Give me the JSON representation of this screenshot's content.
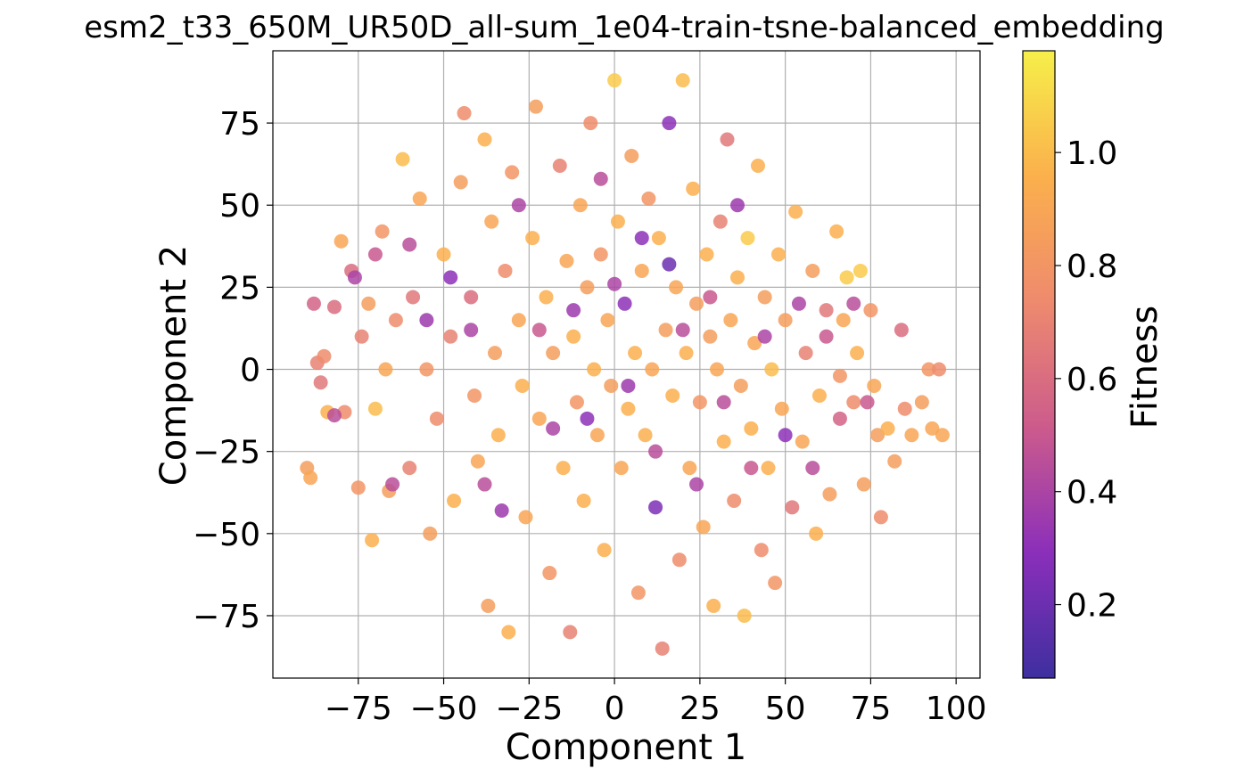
{
  "chart_data": {
    "type": "scatter",
    "title": "esm2_t33_650M_UR50D_all-sum_1e04-train-tsne-balanced_embedding",
    "xlabel": "Component 1",
    "ylabel": "Component 2",
    "xlim": [
      -100,
      107
    ],
    "ylim": [
      -94,
      97
    ],
    "xticks": [
      -75,
      -50,
      -25,
      0,
      25,
      50,
      75,
      100
    ],
    "yticks": [
      -75,
      -50,
      -25,
      0,
      25,
      50,
      75
    ],
    "xtick_labels": [
      "−75",
      "−50",
      "−25",
      "0",
      "25",
      "50",
      "75",
      "100"
    ],
    "ytick_labels": [
      "−75",
      "−50",
      "−25",
      "0",
      "25",
      "50",
      "75"
    ],
    "grid": true,
    "colormap": "plasma",
    "colorbar": {
      "label": "Fitness",
      "range": [
        0.07,
        1.18
      ],
      "ticks": [
        0.2,
        0.4,
        0.6,
        0.8,
        1.0
      ],
      "tick_labels": [
        "0.2",
        "0.4",
        "0.6",
        "0.8",
        "1.0"
      ],
      "colors": [
        "#3e2f9f",
        "#8b2fba",
        "#cc5b8c",
        "#ee8a6e",
        "#fbb04c",
        "#f6ef4a"
      ]
    },
    "points": [
      [
        -90,
        -30,
        0.85
      ],
      [
        -89,
        -33,
        0.9
      ],
      [
        -87,
        2,
        0.7
      ],
      [
        -86,
        -4,
        0.65
      ],
      [
        -85,
        4,
        0.75
      ],
      [
        -84,
        -13,
        0.95
      ],
      [
        -82,
        19,
        0.6
      ],
      [
        -80,
        39,
        0.9
      ],
      [
        -79,
        -13,
        0.75
      ],
      [
        -77,
        30,
        0.6
      ],
      [
        -75,
        -36,
        0.8
      ],
      [
        -74,
        10,
        0.7
      ],
      [
        -72,
        20,
        0.85
      ],
      [
        -71,
        -52,
        0.95
      ],
      [
        -70,
        -12,
        1.0
      ],
      [
        -68,
        42,
        0.8
      ],
      [
        -67,
        0,
        0.9
      ],
      [
        -66,
        -37,
        0.85
      ],
      [
        -64,
        15,
        0.75
      ],
      [
        -62,
        64,
        1.0
      ],
      [
        -60,
        -30,
        0.7
      ],
      [
        -59,
        22,
        0.65
      ],
      [
        -57,
        52,
        0.9
      ],
      [
        -55,
        0,
        0.8
      ],
      [
        -54,
        -50,
        0.85
      ],
      [
        -52,
        -15,
        0.75
      ],
      [
        -50,
        35,
        0.95
      ],
      [
        -48,
        10,
        0.7
      ],
      [
        -47,
        -40,
        0.95
      ],
      [
        -45,
        57,
        0.85
      ],
      [
        -44,
        78,
        0.75
      ],
      [
        -42,
        22,
        0.6
      ],
      [
        -41,
        -8,
        0.8
      ],
      [
        -40,
        -28,
        0.9
      ],
      [
        -38,
        70,
        0.95
      ],
      [
        -37,
        -72,
        0.85
      ],
      [
        -36,
        45,
        0.9
      ],
      [
        -35,
        5,
        0.85
      ],
      [
        -34,
        -20,
        0.95
      ],
      [
        -32,
        30,
        0.75
      ],
      [
        -31,
        -80,
        0.95
      ],
      [
        -30,
        60,
        0.8
      ],
      [
        -28,
        15,
        0.9
      ],
      [
        -27,
        -5,
        0.95
      ],
      [
        -26,
        -45,
        0.9
      ],
      [
        -24,
        40,
        0.95
      ],
      [
        -23,
        80,
        0.85
      ],
      [
        -22,
        -15,
        0.9
      ],
      [
        -20,
        22,
        0.95
      ],
      [
        -19,
        -62,
        0.8
      ],
      [
        -18,
        5,
        0.85
      ],
      [
        -16,
        62,
        0.7
      ],
      [
        -15,
        -30,
        0.95
      ],
      [
        -14,
        33,
        0.9
      ],
      [
        -13,
        -80,
        0.7
      ],
      [
        -12,
        10,
        0.95
      ],
      [
        -11,
        -10,
        0.8
      ],
      [
        -10,
        50,
        0.9
      ],
      [
        -9,
        -40,
        0.95
      ],
      [
        -8,
        25,
        0.85
      ],
      [
        -7,
        75,
        0.75
      ],
      [
        -6,
        0,
        0.95
      ],
      [
        -5,
        -20,
        0.9
      ],
      [
        -4,
        35,
        0.8
      ],
      [
        -3,
        -55,
        0.95
      ],
      [
        -2,
        15,
        0.9
      ],
      [
        -1,
        -5,
        0.85
      ],
      [
        0,
        88,
        1.05
      ],
      [
        1,
        45,
        0.95
      ],
      [
        2,
        -30,
        0.9
      ],
      [
        3,
        20,
        0.3
      ],
      [
        4,
        -12,
        0.95
      ],
      [
        5,
        65,
        0.85
      ],
      [
        6,
        5,
        0.95
      ],
      [
        7,
        -68,
        0.8
      ],
      [
        8,
        30,
        0.9
      ],
      [
        9,
        -20,
        0.95
      ],
      [
        10,
        52,
        0.8
      ],
      [
        11,
        0,
        0.9
      ],
      [
        12,
        -42,
        0.25
      ],
      [
        13,
        40,
        0.95
      ],
      [
        14,
        -85,
        0.7
      ],
      [
        15,
        12,
        0.85
      ],
      [
        16,
        75,
        0.3
      ],
      [
        17,
        -8,
        0.95
      ],
      [
        18,
        25,
        0.9
      ],
      [
        19,
        -58,
        0.75
      ],
      [
        20,
        88,
        1.0
      ],
      [
        21,
        5,
        0.95
      ],
      [
        22,
        -30,
        0.9
      ],
      [
        23,
        55,
        0.95
      ],
      [
        24,
        20,
        0.85
      ],
      [
        25,
        -10,
        0.8
      ],
      [
        26,
        -48,
        0.9
      ],
      [
        27,
        35,
        0.95
      ],
      [
        28,
        10,
        0.85
      ],
      [
        29,
        -72,
        0.95
      ],
      [
        30,
        0,
        0.9
      ],
      [
        31,
        45,
        0.7
      ],
      [
        32,
        -22,
        0.95
      ],
      [
        33,
        70,
        0.65
      ],
      [
        34,
        15,
        0.9
      ],
      [
        35,
        -40,
        0.75
      ],
      [
        36,
        28,
        0.95
      ],
      [
        37,
        -5,
        0.85
      ],
      [
        38,
        -75,
        1.0
      ],
      [
        39,
        40,
        1.05
      ],
      [
        40,
        -18,
        0.95
      ],
      [
        41,
        8,
        0.9
      ],
      [
        42,
        62,
        0.95
      ],
      [
        43,
        -55,
        0.75
      ],
      [
        44,
        22,
        0.85
      ],
      [
        45,
        -30,
        0.95
      ],
      [
        46,
        0,
        1.0
      ],
      [
        47,
        -65,
        0.8
      ],
      [
        48,
        35,
        0.95
      ],
      [
        49,
        -12,
        0.9
      ],
      [
        50,
        15,
        0.85
      ],
      [
        52,
        -42,
        0.65
      ],
      [
        53,
        48,
        0.95
      ],
      [
        55,
        -22,
        0.9
      ],
      [
        56,
        5,
        0.7
      ],
      [
        58,
        30,
        0.85
      ],
      [
        59,
        -50,
        0.95
      ],
      [
        60,
        -8,
        0.95
      ],
      [
        62,
        18,
        0.65
      ],
      [
        63,
        -38,
        0.85
      ],
      [
        65,
        42,
        0.95
      ],
      [
        66,
        -2,
        0.8
      ],
      [
        67,
        15,
        0.9
      ],
      [
        68,
        28,
        1.05
      ],
      [
        70,
        -10,
        0.75
      ],
      [
        71,
        5,
        0.95
      ],
      [
        72,
        30,
        1.05
      ],
      [
        73,
        -35,
        0.85
      ],
      [
        75,
        18,
        0.8
      ],
      [
        76,
        -5,
        0.9
      ],
      [
        77,
        -20,
        0.85
      ],
      [
        78,
        -45,
        0.75
      ],
      [
        80,
        -18,
        0.95
      ],
      [
        82,
        -28,
        0.85
      ],
      [
        84,
        12,
        0.6
      ],
      [
        85,
        -12,
        0.75
      ],
      [
        87,
        -20,
        0.9
      ],
      [
        90,
        -10,
        0.85
      ],
      [
        92,
        0,
        0.8
      ],
      [
        93,
        -18,
        0.9
      ],
      [
        95,
        0,
        0.75
      ],
      [
        96,
        -20,
        0.9
      ],
      [
        -88,
        20,
        0.55
      ],
      [
        -82,
        -14,
        0.45
      ],
      [
        -76,
        28,
        0.4
      ],
      [
        -70,
        35,
        0.5
      ],
      [
        -65,
        -35,
        0.45
      ],
      [
        -60,
        38,
        0.45
      ],
      [
        -55,
        15,
        0.35
      ],
      [
        -48,
        28,
        0.3
      ],
      [
        -42,
        12,
        0.4
      ],
      [
        -38,
        -35,
        0.45
      ],
      [
        -33,
        -43,
        0.35
      ],
      [
        -28,
        50,
        0.4
      ],
      [
        -22,
        12,
        0.5
      ],
      [
        -18,
        -18,
        0.4
      ],
      [
        -12,
        18,
        0.35
      ],
      [
        -8,
        -15,
        0.3
      ],
      [
        -4,
        58,
        0.45
      ],
      [
        0,
        26,
        0.4
      ],
      [
        4,
        -5,
        0.35
      ],
      [
        8,
        40,
        0.3
      ],
      [
        12,
        -25,
        0.45
      ],
      [
        16,
        32,
        0.2
      ],
      [
        20,
        12,
        0.45
      ],
      [
        24,
        -35,
        0.4
      ],
      [
        28,
        22,
        0.5
      ],
      [
        32,
        -10,
        0.45
      ],
      [
        36,
        50,
        0.35
      ],
      [
        40,
        -30,
        0.5
      ],
      [
        44,
        10,
        0.4
      ],
      [
        50,
        -20,
        0.3
      ],
      [
        54,
        20,
        0.4
      ],
      [
        58,
        -30,
        0.45
      ],
      [
        62,
        10,
        0.5
      ],
      [
        66,
        -15,
        0.55
      ],
      [
        70,
        20,
        0.45
      ],
      [
        74,
        -10,
        0.5
      ]
    ]
  }
}
